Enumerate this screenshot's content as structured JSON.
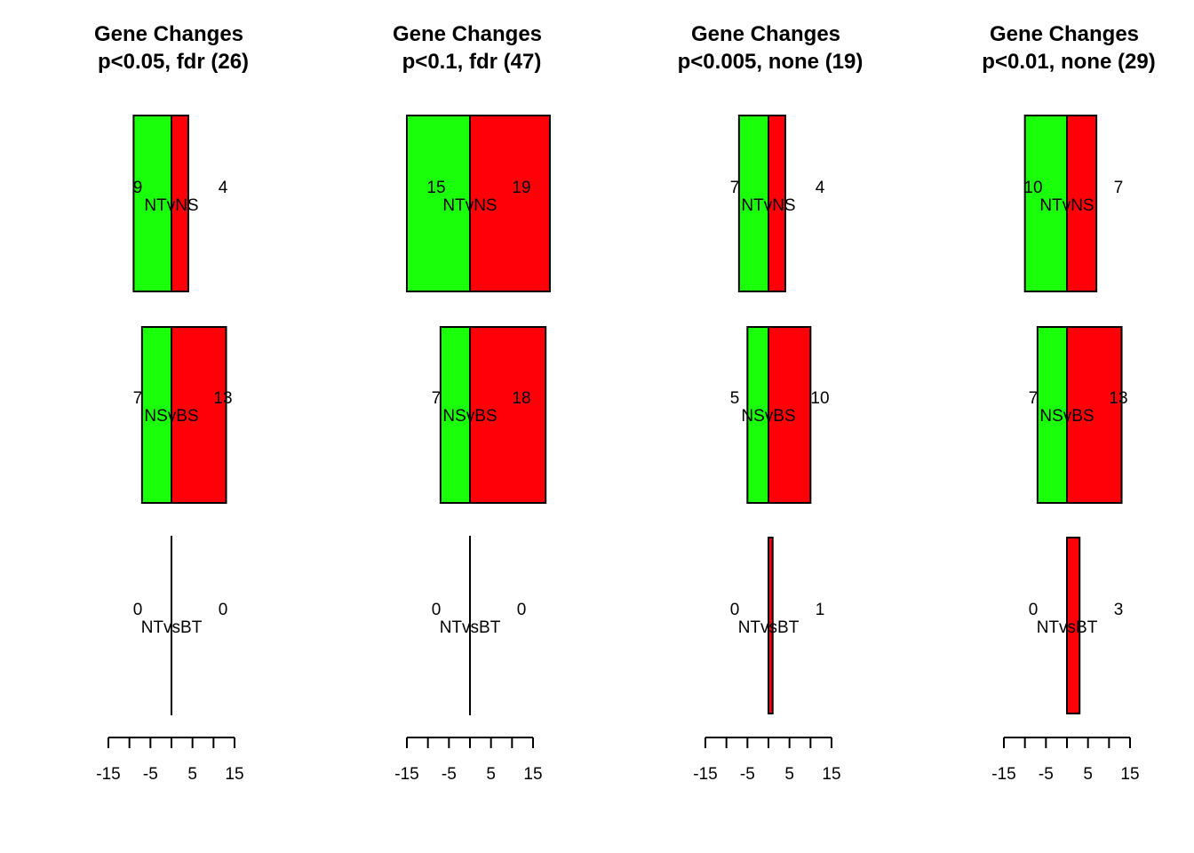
{
  "chart_data": [
    {
      "type": "bar",
      "orientation": "horizontal-diverging",
      "title_line1": "Gene Changes",
      "title_line2": "p<0.05, fdr (26)",
      "xlim": [
        -15,
        15
      ],
      "tick_values": [
        -15,
        -10,
        -5,
        0,
        5,
        10,
        15
      ],
      "tick_labels": [
        "-15",
        "-5",
        "5",
        "15"
      ],
      "rows": [
        {
          "comparison": "NTvNS",
          "down": 9,
          "up": 4,
          "down_label": "9",
          "up_label": "4"
        },
        {
          "comparison": "NSvBS",
          "down": 7,
          "up": 13,
          "down_label": "7",
          "up_label": "13"
        },
        {
          "comparison": "NTvsBT",
          "down": 0,
          "up": 0,
          "down_label": "0",
          "up_label": "0"
        }
      ]
    },
    {
      "type": "bar",
      "orientation": "horizontal-diverging",
      "title_line1": "Gene Changes",
      "title_line2": "p<0.1, fdr (47)",
      "xlim": [
        -15,
        15
      ],
      "tick_values": [
        -15,
        -10,
        -5,
        0,
        5,
        10,
        15
      ],
      "tick_labels": [
        "-15",
        "-5",
        "5",
        "15"
      ],
      "rows": [
        {
          "comparison": "NTvNS",
          "down": 15,
          "up": 19,
          "down_label": "15",
          "up_label": "19"
        },
        {
          "comparison": "NSvBS",
          "down": 7,
          "up": 18,
          "down_label": "7",
          "up_label": "18"
        },
        {
          "comparison": "NTvsBT",
          "down": 0,
          "up": 0,
          "down_label": "0",
          "up_label": "0"
        }
      ]
    },
    {
      "type": "bar",
      "orientation": "horizontal-diverging",
      "title_line1": "Gene Changes",
      "title_line2": "p<0.005, none (19)",
      "xlim": [
        -15,
        15
      ],
      "tick_values": [
        -15,
        -10,
        -5,
        0,
        5,
        10,
        15
      ],
      "tick_labels": [
        "-15",
        "-5",
        "5",
        "15"
      ],
      "rows": [
        {
          "comparison": "NTvNS",
          "down": 7,
          "up": 4,
          "down_label": "7",
          "up_label": "4"
        },
        {
          "comparison": "NSvBS",
          "down": 5,
          "up": 10,
          "down_label": "5",
          "up_label": "10"
        },
        {
          "comparison": "NTvsBT",
          "down": 0,
          "up": 1,
          "down_label": "0",
          "up_label": "1"
        }
      ]
    },
    {
      "type": "bar",
      "orientation": "horizontal-diverging",
      "title_line1": "Gene Changes",
      "title_line2": "p<0.01, none (29)",
      "xlim": [
        -15,
        15
      ],
      "tick_values": [
        -15,
        -10,
        -5,
        0,
        5,
        10,
        15
      ],
      "tick_labels": [
        "-15",
        "-5",
        "5",
        "15"
      ],
      "rows": [
        {
          "comparison": "NTvNS",
          "down": 10,
          "up": 7,
          "down_label": "10",
          "up_label": "7"
        },
        {
          "comparison": "NSvBS",
          "down": 7,
          "up": 13,
          "down_label": "7",
          "up_label": "13"
        },
        {
          "comparison": "NTvsBT",
          "down": 0,
          "up": 3,
          "down_label": "0",
          "up_label": "3"
        }
      ]
    }
  ],
  "colors": {
    "down": "#1aff0a",
    "up": "#ff0009",
    "stroke": "#000000"
  }
}
